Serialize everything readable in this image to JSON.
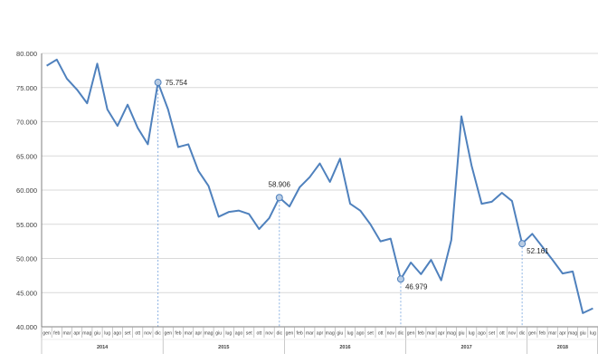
{
  "chart_data": {
    "type": "line",
    "title": "",
    "xlabel": "",
    "ylabel": "",
    "ylim": [
      40000,
      80000
    ],
    "yticks": [
      "40.000",
      "45.000",
      "50.000",
      "55.000",
      "60.000",
      "65.000",
      "70.000",
      "75.000",
      "80.000"
    ],
    "grid": true,
    "legend": "none",
    "years": [
      "2014",
      "2015",
      "2016",
      "2017",
      "2018"
    ],
    "months": [
      "gen",
      "feb",
      "mar",
      "apr",
      "mag",
      "giu",
      "lug",
      "ago",
      "set",
      "ott",
      "nov",
      "dic"
    ],
    "x_last_partial_label": "lug",
    "series": [
      {
        "values": [
          78200,
          79100,
          76300,
          74700,
          72700,
          78500,
          71800,
          69400,
          72500,
          69100,
          66700,
          75754,
          71800,
          66300,
          66700,
          62800,
          60600,
          56100,
          56800,
          57000,
          56500,
          54300,
          55900,
          58906,
          57600,
          60400,
          61900,
          63900,
          61200,
          64600,
          58000,
          57000,
          55000,
          52500,
          52900,
          46979,
          49400,
          47700,
          49800,
          46800,
          52700,
          70800,
          63600,
          58000,
          58300,
          59600,
          58400,
          52161,
          53600,
          51700,
          49800,
          47800,
          48100,
          42000,
          42700
        ]
      }
    ],
    "annotations": [
      {
        "index": 11,
        "label": "75.754"
      },
      {
        "index": 23,
        "label": "58.906"
      },
      {
        "index": 35,
        "label": "46.979"
      },
      {
        "index": 47,
        "label": "52.161"
      }
    ],
    "colors": {
      "line": "#4f81bd",
      "marker_fill": "#b8cce4",
      "grid": "#d9d9d9",
      "axis": "#808080",
      "drop_line": "#8eb4e3"
    }
  }
}
